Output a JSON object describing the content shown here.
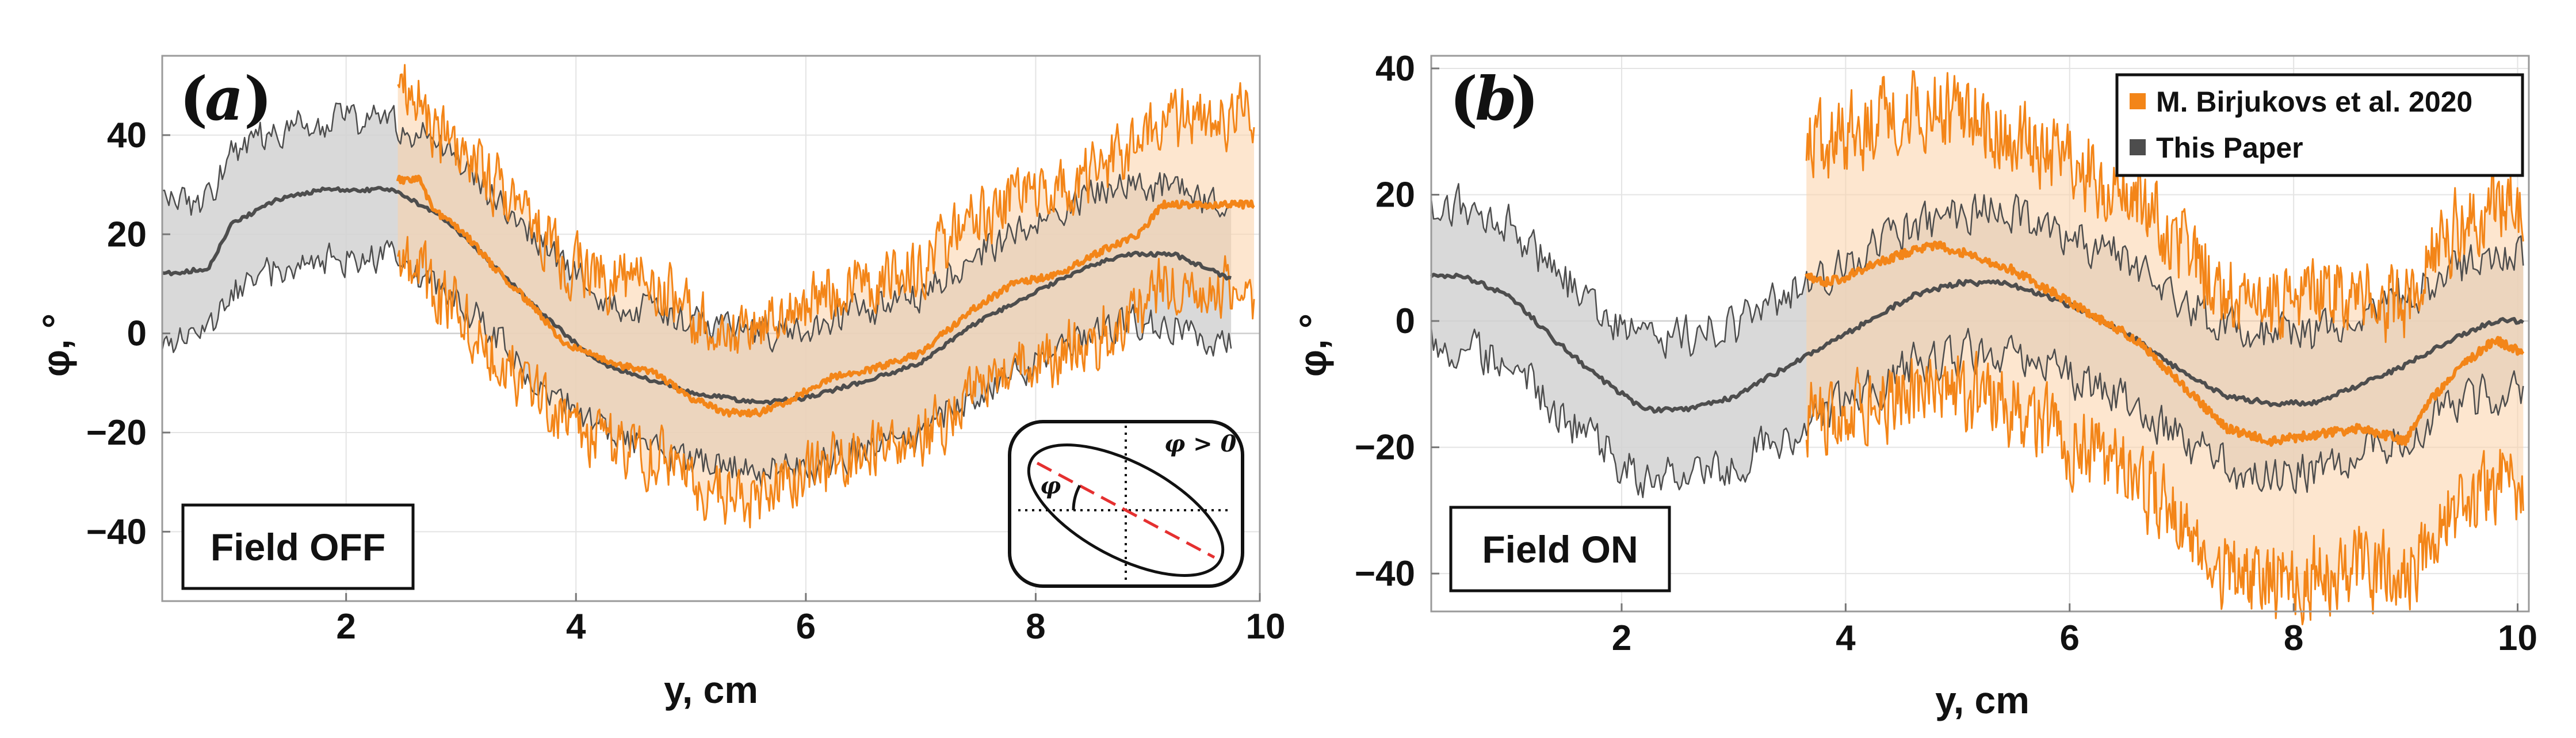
{
  "colors": {
    "birjukovs_line": "#f38518",
    "birjukovs_band": "#fbd2a8",
    "thispaper_line": "#4d4d4d",
    "thispaper_band": "#d2d2d2"
  },
  "legend": {
    "entries": [
      "M. Birjukovs et al. 2020",
      "This Paper"
    ]
  },
  "inset": {
    "label_condition": "φ > 0",
    "label_angle": "φ"
  },
  "chart_data": [
    {
      "type": "line",
      "panel": "(a)",
      "panel_letter": "a",
      "condition_label": "Field OFF",
      "xlabel": "y, cm",
      "ylabel": "φ, °",
      "xlim": [
        0.4,
        9.95
      ],
      "ylim": [
        -54,
        56
      ],
      "xticks": [
        "2",
        "4",
        "6",
        "8",
        "10"
      ],
      "yticks": [
        "40",
        "20",
        "0",
        "−20",
        "−40"
      ],
      "series": [
        {
          "name": "This Paper",
          "x_range": [
            0.4,
            9.7
          ],
          "mean": [
            [
              0.4,
              12
            ],
            [
              0.8,
              13
            ],
            [
              1.0,
              22
            ],
            [
              1.4,
              27
            ],
            [
              1.8,
              29
            ],
            [
              2.4,
              29
            ],
            [
              2.8,
              24
            ],
            [
              3.1,
              18
            ],
            [
              3.4,
              11
            ],
            [
              3.8,
              2
            ],
            [
              4.2,
              -6
            ],
            [
              4.6,
              -9
            ],
            [
              5.0,
              -12
            ],
            [
              5.6,
              -14
            ],
            [
              6.0,
              -13
            ],
            [
              6.6,
              -9
            ],
            [
              7.0,
              -6
            ],
            [
              7.4,
              1
            ],
            [
              7.8,
              6
            ],
            [
              8.4,
              13
            ],
            [
              8.8,
              16
            ],
            [
              9.2,
              16
            ],
            [
              9.7,
              11
            ]
          ],
          "band_halfwidth": 14
        },
        {
          "name": "M. Birjukovs et al. 2020",
          "x_range": [
            2.45,
            9.9
          ],
          "mean": [
            [
              2.45,
              31
            ],
            [
              2.65,
              31
            ],
            [
              2.75,
              25
            ],
            [
              3.0,
              21
            ],
            [
              3.3,
              13
            ],
            [
              3.6,
              6
            ],
            [
              3.9,
              -2
            ],
            [
              4.3,
              -6
            ],
            [
              4.7,
              -8
            ],
            [
              5.0,
              -13
            ],
            [
              5.3,
              -16
            ],
            [
              5.6,
              -16
            ],
            [
              5.9,
              -13
            ],
            [
              6.2,
              -9
            ],
            [
              6.6,
              -7
            ],
            [
              7.0,
              -4
            ],
            [
              7.4,
              4
            ],
            [
              7.8,
              10
            ],
            [
              8.2,
              12
            ],
            [
              8.6,
              17
            ],
            [
              8.9,
              20
            ],
            [
              9.1,
              26
            ],
            [
              9.9,
              26
            ]
          ],
          "band_halfwidth": 17
        }
      ]
    },
    {
      "type": "line",
      "panel": "(b)",
      "panel_letter": "b",
      "condition_label": "Field ON",
      "xlabel": "y, cm",
      "ylabel": "φ, °",
      "xlim": [
        0.3,
        10.1
      ],
      "ylim": [
        -46,
        42
      ],
      "xticks": [
        "2",
        "4",
        "6",
        "8",
        "10"
      ],
      "yticks": [
        "40",
        "20",
        "0",
        "−20",
        "−40"
      ],
      "series": [
        {
          "name": "This Paper",
          "x_range": [
            0.3,
            10.05
          ],
          "mean": [
            [
              0.3,
              7
            ],
            [
              0.6,
              7
            ],
            [
              1.0,
              4
            ],
            [
              1.4,
              -3
            ],
            [
              1.8,
              -9
            ],
            [
              2.2,
              -14
            ],
            [
              2.6,
              -14
            ],
            [
              3.0,
              -12
            ],
            [
              3.4,
              -8
            ],
            [
              3.8,
              -4
            ],
            [
              4.2,
              0
            ],
            [
              4.6,
              4
            ],
            [
              5.0,
              6
            ],
            [
              5.4,
              6
            ],
            [
              5.8,
              4
            ],
            [
              6.2,
              1
            ],
            [
              6.6,
              -3
            ],
            [
              7.0,
              -8
            ],
            [
              7.4,
              -12
            ],
            [
              7.8,
              -13
            ],
            [
              8.2,
              -13
            ],
            [
              8.6,
              -10
            ],
            [
              9.0,
              -7
            ],
            [
              9.4,
              -3
            ],
            [
              9.8,
              0
            ],
            [
              10.05,
              0
            ]
          ],
          "band_halfwidth": 11
        },
        {
          "name": "M. Birjukovs et al. 2020",
          "x_range": [
            3.65,
            10.05
          ],
          "mean": [
            [
              3.65,
              7
            ],
            [
              3.8,
              6
            ],
            [
              4.0,
              7
            ],
            [
              4.4,
              10
            ],
            [
              4.8,
              12
            ],
            [
              5.2,
              10
            ],
            [
              5.5,
              8
            ],
            [
              5.8,
              5
            ],
            [
              6.2,
              1
            ],
            [
              6.6,
              -3
            ],
            [
              7.0,
              -10
            ],
            [
              7.4,
              -17
            ],
            [
              7.8,
              -19
            ],
            [
              8.2,
              -18
            ],
            [
              8.6,
              -17
            ],
            [
              9.0,
              -19
            ],
            [
              9.2,
              -13
            ],
            [
              9.5,
              -7
            ],
            [
              9.8,
              -3
            ],
            [
              10.05,
              -5
            ]
          ],
          "band_halfwidth": 22
        }
      ]
    }
  ]
}
